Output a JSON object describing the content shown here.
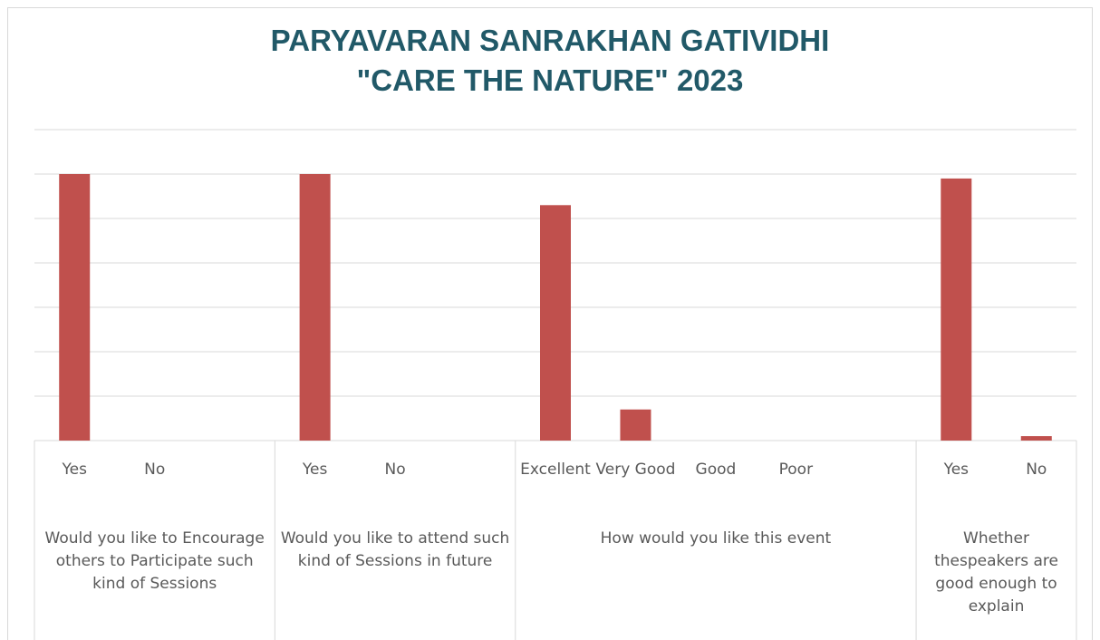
{
  "chart_data": {
    "type": "bar",
    "title": [
      "PARYAVARAN SANRAKHAN GATIVIDHI",
      "\"CARE THE NATURE\" 2023"
    ],
    "color": "#c0504d",
    "groups": [
      {
        "label": "Would you like to Encourage others to Participate such kind of Sessions",
        "categories": [
          "Yes",
          "No",
          null
        ],
        "values": [
          120,
          0,
          null
        ]
      },
      {
        "label": "Would you like to attend such kind of Sessions in future",
        "categories": [
          "Yes",
          "No",
          null
        ],
        "values": [
          120,
          0,
          null
        ]
      },
      {
        "label": "How would you like this event",
        "categories": [
          "Excellent",
          "Very Good",
          "Good",
          "Poor",
          null
        ],
        "values": [
          106,
          14,
          0,
          0,
          null
        ]
      },
      {
        "label": "Whether thespeakers are good enough to explain",
        "categories": [
          "Yes",
          "No"
        ],
        "values": [
          118,
          2
        ]
      }
    ],
    "ylim": [
      0,
      140
    ],
    "yticks": [
      0,
      20,
      40,
      60,
      80,
      100,
      120,
      140
    ],
    "grid": true
  }
}
